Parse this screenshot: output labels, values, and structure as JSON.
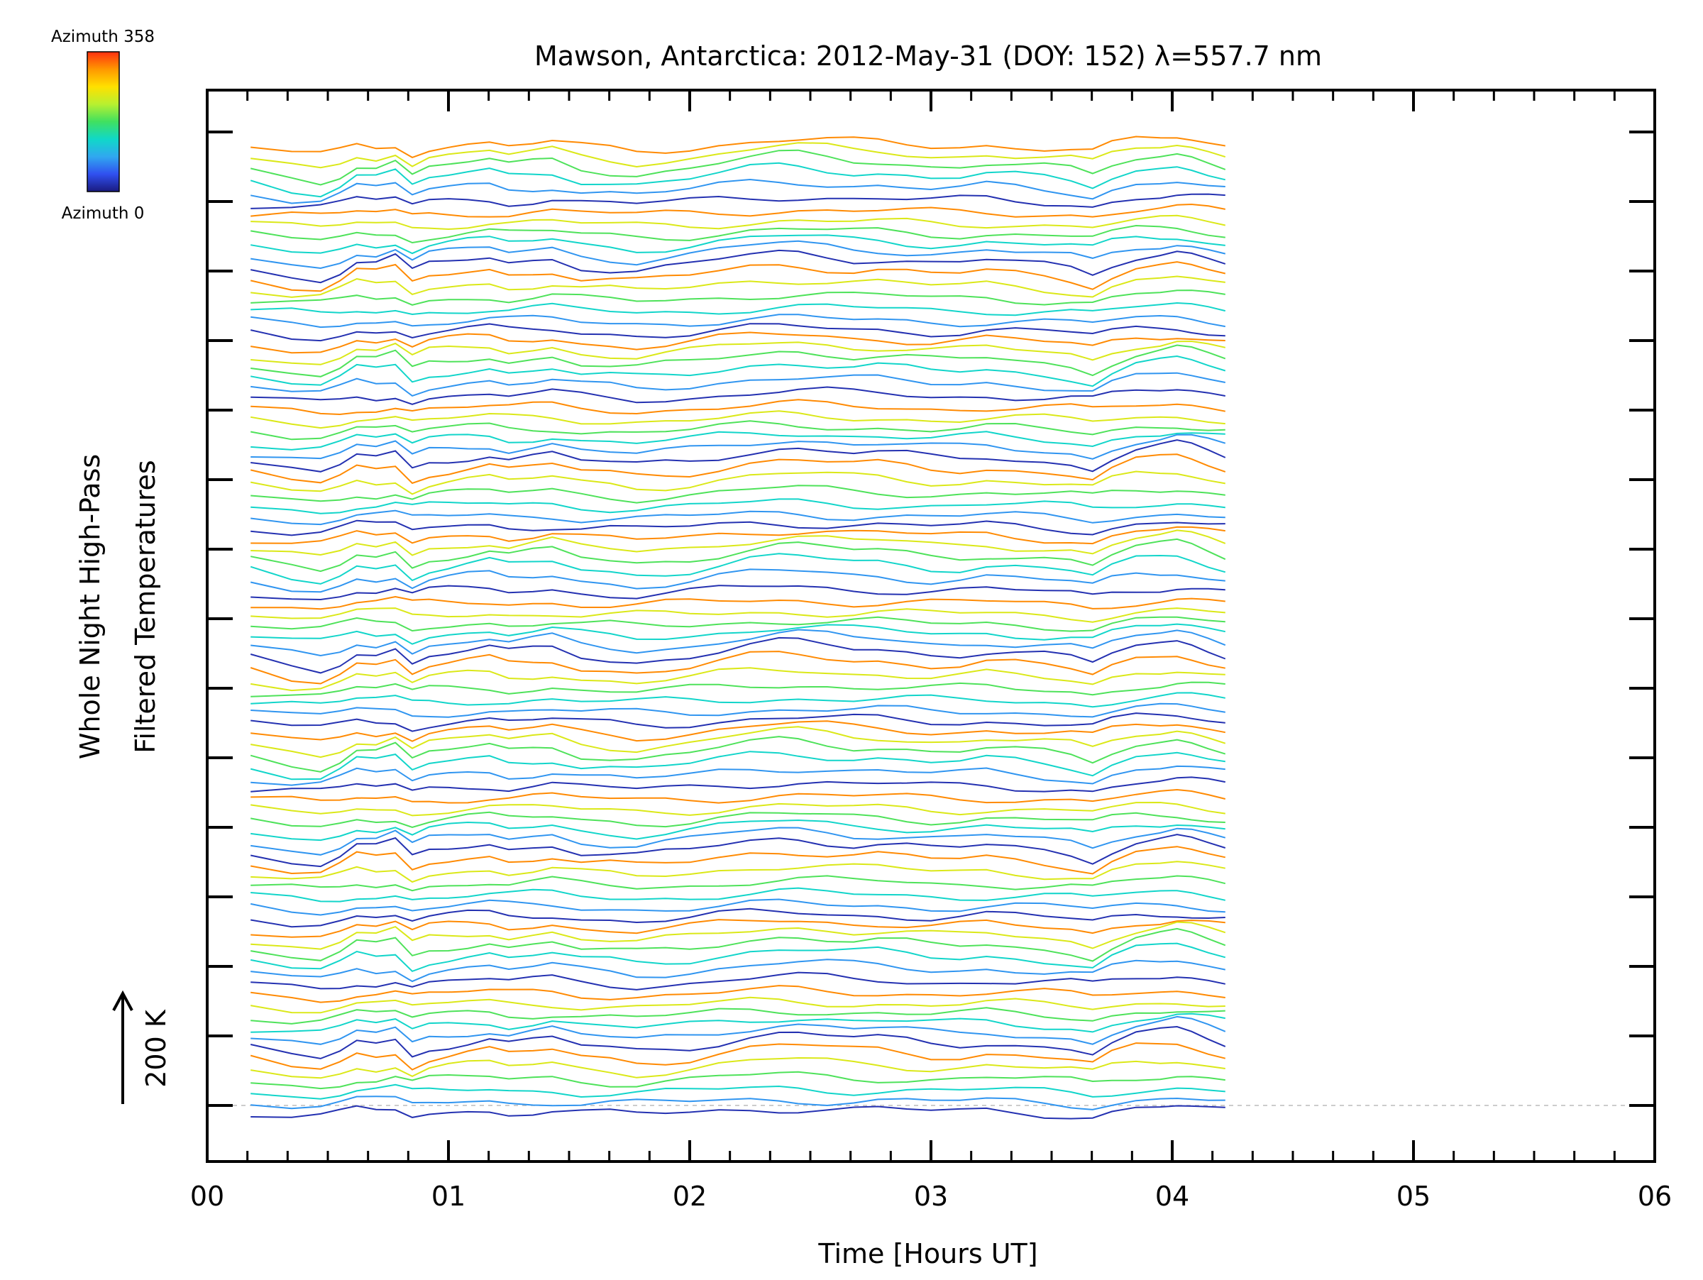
{
  "chart_data": {
    "type": "line",
    "title": "Mawson, Antarctica: 2012-May-31 (DOY: 152) λ=557.7 nm",
    "xlabel": "Time [Hours UT]",
    "ylabel": [
      "Whole Night High-Pass",
      "Filtered Temperatures"
    ],
    "x_tick_labels": [
      "00",
      "01",
      "02",
      "03",
      "04",
      "05",
      "06"
    ],
    "xlim": [
      0,
      6
    ],
    "grid": false,
    "colorbar": {
      "top_label": "Azimuth 358",
      "bottom_label": "Azimuth 0",
      "colors": [
        "#ff3010",
        "#ff9800",
        "#ffe000",
        "#b8f030",
        "#40e060",
        "#10d8c8",
        "#30a8f0",
        "#3050f0",
        "#1a1a80"
      ]
    },
    "scale_bar": {
      "label": "200 K"
    },
    "azimuth_range": [
      0,
      358
    ],
    "num_traces": 90,
    "x": [
      0.18,
      0.35,
      0.47,
      0.55,
      0.62,
      0.7,
      0.78,
      0.85,
      0.92,
      1.0,
      1.08,
      1.17,
      1.25,
      1.35,
      1.43,
      1.55,
      1.67,
      1.78,
      1.9,
      2.0,
      2.12,
      2.25,
      2.37,
      2.45,
      2.57,
      2.68,
      2.78,
      2.9,
      3.0,
      3.12,
      3.23,
      3.35,
      3.47,
      3.58,
      3.67,
      3.75,
      3.85,
      3.95,
      4.02,
      4.08,
      4.15,
      4.22
    ],
    "base_profile": [
      0,
      -3,
      -4,
      -1,
      3,
      2,
      4,
      -2,
      1,
      2,
      3,
      4,
      2,
      3,
      4,
      1,
      0,
      -1,
      0,
      1,
      3,
      5,
      6,
      6,
      5,
      4,
      4,
      3,
      2,
      2,
      3,
      2,
      1,
      0,
      -2,
      2,
      5,
      6,
      7,
      6,
      4,
      2
    ]
  }
}
